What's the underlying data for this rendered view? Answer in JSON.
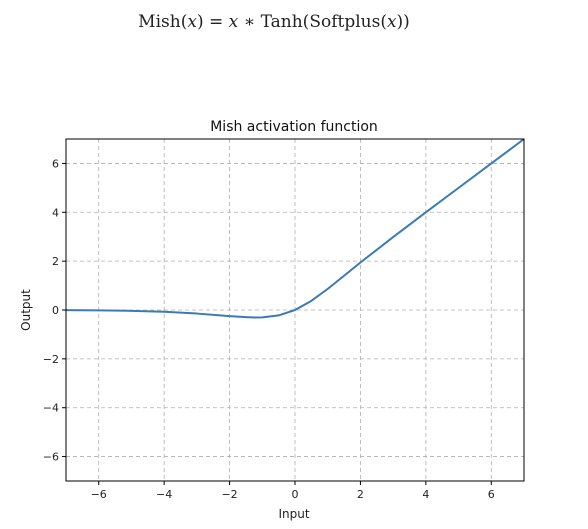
{
  "formula": {
    "fn_name": "Mish",
    "var": "x",
    "eq": " = ",
    "times": " ∗ ",
    "tanh": "Tanh",
    "softplus": "Softplus"
  },
  "colors": {
    "line": "#3a7bb5",
    "grid": "#b0b0b0",
    "axes": "#000000"
  },
  "chart_data": {
    "type": "line",
    "title": "Mish activation function",
    "xlabel": "Input",
    "ylabel": "Output",
    "xlim": [
      -7,
      7
    ],
    "ylim": [
      -7,
      7
    ],
    "xticks": [
      -6,
      -4,
      -2,
      0,
      2,
      4,
      6
    ],
    "yticks": [
      -6,
      -4,
      -2,
      0,
      2,
      4,
      6
    ],
    "xtick_labels": [
      "−6",
      "−4",
      "−2",
      "0",
      "2",
      "4",
      "6"
    ],
    "ytick_labels": [
      "−6",
      "−4",
      "−2",
      "0",
      "2",
      "4",
      "6"
    ],
    "grid": true,
    "grid_style": "dashed",
    "series": [
      {
        "x": [
          -7,
          -6,
          -5,
          -4,
          -3,
          -2,
          -1.5,
          -1.2,
          -1,
          -0.5,
          0,
          0.5,
          1,
          1.5,
          2,
          3,
          4,
          5,
          6,
          7
        ],
        "values": [
          -0.0064,
          -0.0148,
          -0.0336,
          -0.0726,
          -0.1456,
          -0.2525,
          -0.2909,
          -0.3088,
          -0.3034,
          -0.2207,
          0,
          0.3752,
          0.8651,
          1.4034,
          1.944,
          2.9865,
          3.9974,
          4.9996,
          5.9999,
          7.0
        ]
      }
    ]
  }
}
